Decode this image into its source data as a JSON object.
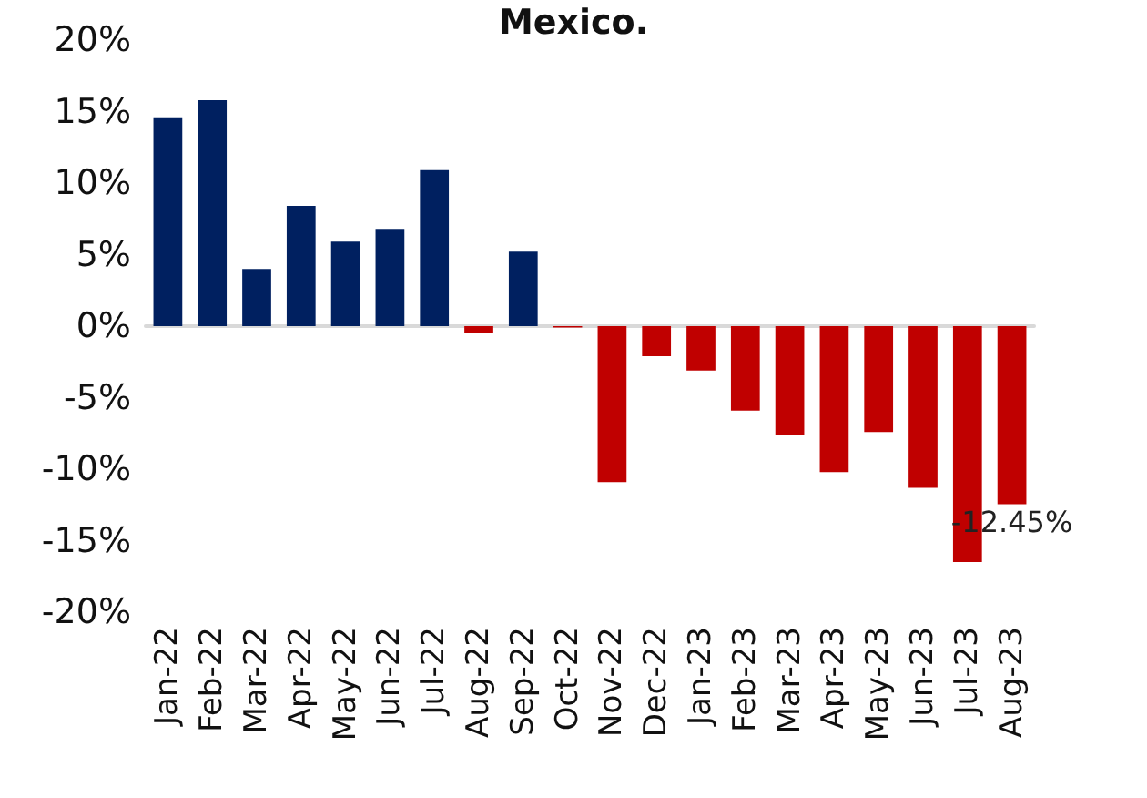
{
  "chart_data": {
    "type": "bar",
    "title": "Mexico.",
    "categories": [
      "Jan-22",
      "Feb-22",
      "Mar-22",
      "Apr-22",
      "May-22",
      "Jun-22",
      "Jul-22",
      "Aug-22",
      "Sep-22",
      "Oct-22",
      "Nov-22",
      "Dec-22",
      "Jan-23",
      "Feb-23",
      "Mar-23",
      "Apr-23",
      "May-23",
      "Jun-23",
      "Jul-23",
      "Aug-23"
    ],
    "values": [
      14.6,
      15.8,
      4.0,
      8.4,
      5.9,
      6.8,
      10.9,
      -0.5,
      5.2,
      -0.1,
      -10.9,
      -2.1,
      -3.1,
      -5.9,
      -7.6,
      -10.2,
      -7.4,
      -11.3,
      -16.5,
      -12.45
    ],
    "colors": [
      "#002060",
      "#002060",
      "#002060",
      "#002060",
      "#002060",
      "#002060",
      "#002060",
      "#c00000",
      "#002060",
      "#c00000",
      "#c00000",
      "#c00000",
      "#c00000",
      "#c00000",
      "#c00000",
      "#c00000",
      "#c00000",
      "#c00000",
      "#c00000",
      "#c00000"
    ],
    "value_labels": [
      null,
      null,
      null,
      null,
      null,
      null,
      null,
      null,
      null,
      null,
      null,
      null,
      null,
      null,
      null,
      null,
      null,
      null,
      null,
      "-12.45%"
    ],
    "ylim": [
      -20,
      20
    ],
    "yticks": [
      {
        "value": -20,
        "label": "-20%"
      },
      {
        "value": -15,
        "label": "-15%"
      },
      {
        "value": -10,
        "label": "-10%"
      },
      {
        "value": -5,
        "label": "-5%"
      },
      {
        "value": 0,
        "label": "0%"
      },
      {
        "value": 5,
        "label": "5%"
      },
      {
        "value": 10,
        "label": "10%"
      },
      {
        "value": 15,
        "label": "15%"
      },
      {
        "value": 20,
        "label": "20%"
      }
    ]
  }
}
